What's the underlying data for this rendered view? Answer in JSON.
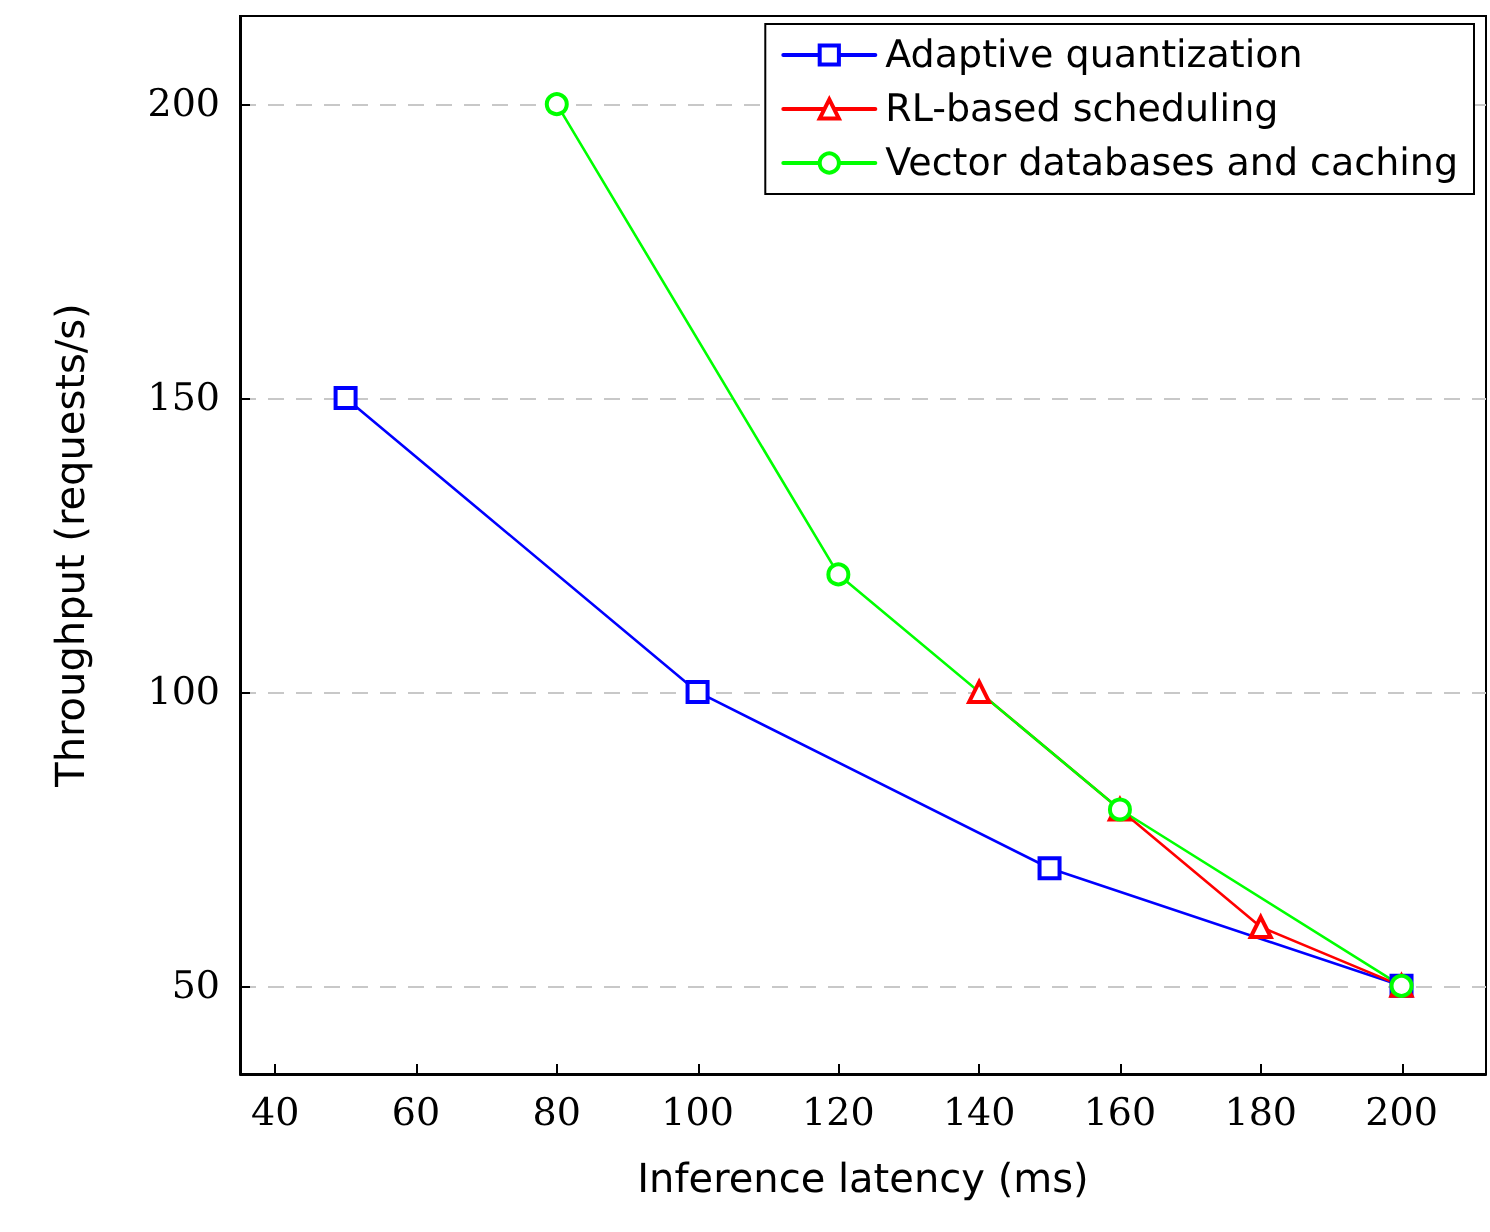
{
  "chart_data": {
    "type": "line",
    "xlabel": "Inference latency (ms)",
    "ylabel": "Throughput (requests/s)",
    "xlim": [
      35,
      212
    ],
    "xticks": [
      40,
      60,
      80,
      100,
      120,
      140,
      160,
      180,
      200
    ],
    "ylim": [
      35,
      215
    ],
    "yticks": [
      50,
      100,
      150,
      200
    ],
    "grid": "y",
    "legend": "top right",
    "line_style": "solid",
    "series": [
      {
        "name": "Adaptive quantization",
        "color": "#0000ff",
        "marker": "square",
        "x": [
          50,
          100,
          150,
          200
        ],
        "values": [
          150,
          100,
          70,
          50
        ]
      },
      {
        "name": "RL-based scheduling",
        "color": "#ff0000",
        "marker": "triangle",
        "x": [
          140,
          160,
          180,
          200
        ],
        "values": [
          100,
          80,
          60,
          50
        ]
      },
      {
        "name": "Vector databases and caching",
        "color": "#00ff00",
        "marker": "circle",
        "x": [
          80,
          120,
          160,
          200
        ],
        "values": [
          200,
          120,
          80,
          50
        ]
      }
    ]
  }
}
